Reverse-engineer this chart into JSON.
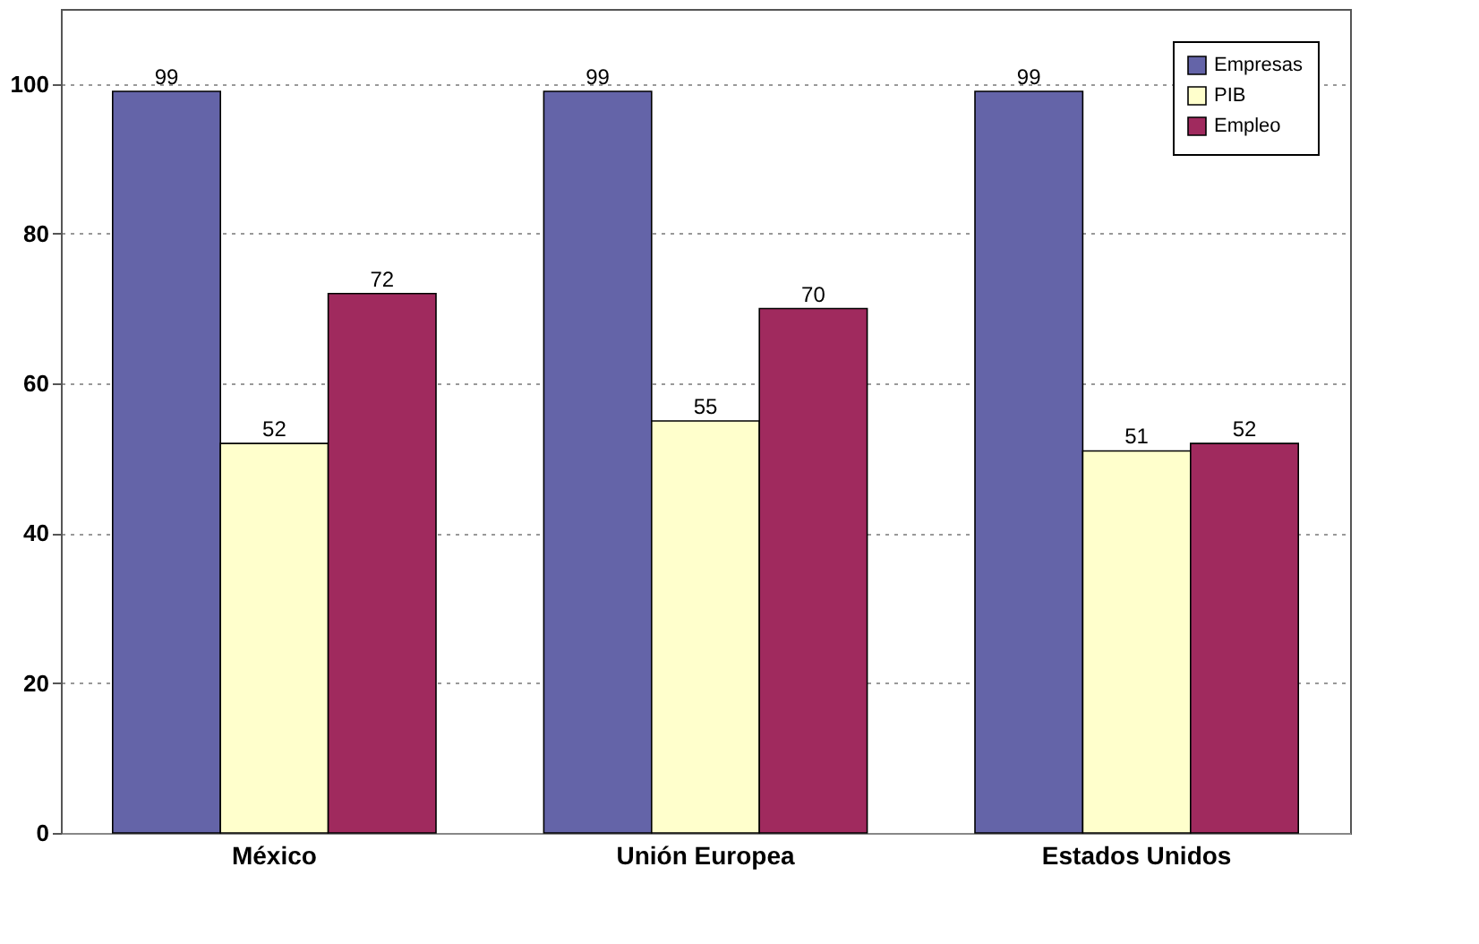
{
  "chart_data": {
    "type": "bar",
    "categories": [
      "México",
      "Unión Europea",
      "Estados Unidos"
    ],
    "series": [
      {
        "name": "Empresas",
        "color": "#6464a8",
        "values": [
          99,
          99,
          99
        ]
      },
      {
        "name": "PIB",
        "color": "#ffffcc",
        "values": [
          52,
          55,
          51
        ]
      },
      {
        "name": "Empleo",
        "color": "#a02a5e",
        "values": [
          72,
          70,
          52
        ]
      }
    ],
    "ylim": [
      0,
      110
    ],
    "yticks": [
      0,
      20,
      40,
      60,
      80,
      100
    ],
    "grid": "y",
    "legend": "top right",
    "data_labels": true
  }
}
